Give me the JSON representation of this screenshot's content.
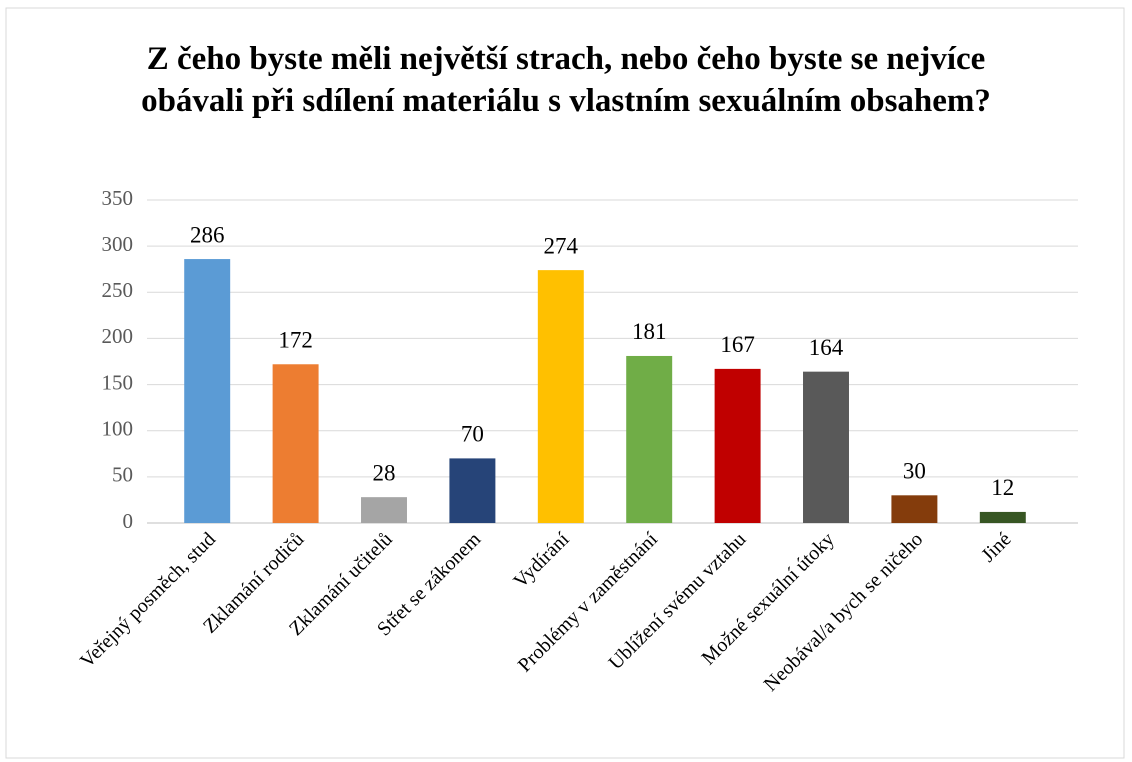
{
  "chart_data": {
    "type": "bar",
    "title": "Z čeho byste měli největší strach, nebo čeho byste se nejvíce obávali při sdílení materiálu s vlastním sexuálním obsahem?",
    "categories": [
      "Veřejný posměch, stud",
      "Zklamání rodičů",
      "Zklamání učitelů",
      "Střet se zákonem",
      "Vydírání",
      "Problémy v zaměstnání",
      "Ublížení svému vztahu",
      "Možné sexuální útoky",
      "Neobával/a bych se ničeho",
      "Jiné"
    ],
    "values": [
      286,
      172,
      28,
      70,
      274,
      181,
      167,
      164,
      30,
      12
    ],
    "colors": [
      "#5b9bd5",
      "#ed7d31",
      "#a5a5a5",
      "#264478",
      "#ffc000",
      "#70ad47",
      "#c00000",
      "#595959",
      "#843c0c",
      "#375623"
    ],
    "ylim": [
      0,
      350
    ],
    "yticks": [
      0,
      50,
      100,
      150,
      200,
      250,
      300,
      350
    ],
    "grid": true
  }
}
